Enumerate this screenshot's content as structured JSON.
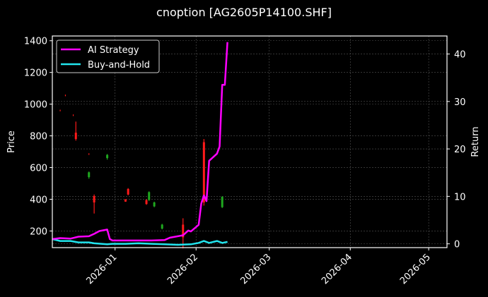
{
  "title": "cnoption [AG2605P14100.SHF]",
  "colors": {
    "background": "#000000",
    "axis": "#ffffff",
    "grid": "#555555",
    "ai_strategy": "#ff00ff",
    "buy_and_hold": "#22e5ee",
    "candle_up": "#1fa81f",
    "candle_down": "#ff1a1a"
  },
  "legend": {
    "items": [
      {
        "label": "AI Strategy",
        "color": "#ff00ff"
      },
      {
        "label": "Buy-and-Hold",
        "color": "#22e5ee"
      }
    ],
    "position": "upper left"
  },
  "chart_data": {
    "type": "line",
    "title": "cnoption [AG2605P14100.SHF]",
    "xlabel": "",
    "ylabel": "Price",
    "ylabel_right": "Return",
    "x_ticks": [
      "2026-01",
      "2026-02",
      "2026-03",
      "2026-04",
      "2026-05"
    ],
    "y_ticks_left": [
      200,
      400,
      600,
      800,
      1000,
      1200,
      1400
    ],
    "y_ticks_right": [
      0,
      10,
      20,
      30,
      40
    ],
    "ylim_left": [
      95,
      1430
    ],
    "ylim_right": [
      -0.8,
      43.8
    ],
    "xlim": [
      "2025-12-08",
      "2026-05-08"
    ],
    "grid": true,
    "legend_position": "upper left",
    "series": [
      {
        "name": "AI Strategy",
        "axis": "right",
        "color": "#ff00ff",
        "x": [
          "2025-12-08",
          "2025-12-11",
          "2025-12-15",
          "2025-12-18",
          "2025-12-22",
          "2025-12-24",
          "2025-12-26",
          "2025-12-29",
          "2025-12-30",
          "2025-12-31",
          "2026-01-05",
          "2026-01-10",
          "2026-01-15",
          "2026-01-20",
          "2026-01-22",
          "2026-01-25",
          "2026-01-27",
          "2026-01-29",
          "2026-01-30",
          "2026-02-02",
          "2026-02-03",
          "2026-02-04",
          "2026-02-05",
          "2026-02-06",
          "2026-02-09",
          "2026-02-10",
          "2026-02-11",
          "2026-02-12",
          "2026-02-13"
        ],
        "values": [
          1.0,
          1.2,
          1.1,
          1.5,
          1.6,
          2.1,
          2.7,
          3.0,
          1.0,
          0.7,
          0.7,
          0.7,
          0.7,
          0.8,
          1.3,
          1.6,
          1.8,
          2.8,
          2.6,
          4.0,
          8.5,
          10.2,
          9.0,
          17.5,
          19.0,
          20.5,
          33.5,
          33.5,
          42.5
        ]
      },
      {
        "name": "Buy-and-Hold",
        "axis": "right",
        "color": "#22e5ee",
        "x": [
          "2025-12-08",
          "2025-12-11",
          "2025-12-15",
          "2025-12-18",
          "2025-12-22",
          "2025-12-24",
          "2025-12-29",
          "2025-12-31",
          "2026-01-05",
          "2026-01-10",
          "2026-01-15",
          "2026-01-20",
          "2026-01-25",
          "2026-01-30",
          "2026-02-02",
          "2026-02-04",
          "2026-02-06",
          "2026-02-09",
          "2026-02-11",
          "2026-02-13"
        ],
        "values": [
          1.0,
          0.6,
          0.6,
          0.3,
          0.3,
          0.1,
          -0.1,
          0.0,
          0.0,
          0.1,
          0.0,
          -0.1,
          -0.2,
          -0.1,
          0.2,
          0.6,
          0.2,
          0.6,
          0.2,
          0.4
        ]
      },
      {
        "name": "Price (OHLC candles)",
        "axis": "left",
        "type": "candlestick",
        "candles": [
          {
            "x": "2025-12-11",
            "high": 965,
            "low": 955,
            "dir": "down"
          },
          {
            "x": "2025-12-13",
            "high": 1060,
            "low": 1050,
            "dir": "down"
          },
          {
            "x": "2025-12-16",
            "high": 935,
            "low": 925,
            "dir": "down"
          },
          {
            "x": "2025-12-17",
            "high": 890,
            "low": 770,
            "open": 820,
            "close": 780,
            "dir": "down"
          },
          {
            "x": "2025-12-22",
            "high": 690,
            "low": 680,
            "dir": "down"
          },
          {
            "x": "2025-12-22",
            "high": 575,
            "low": 530,
            "open": 540,
            "close": 570,
            "dir": "up"
          },
          {
            "x": "2025-12-24",
            "high": 430,
            "low": 310,
            "open": 420,
            "close": 380,
            "dir": "down"
          },
          {
            "x": "2025-12-29",
            "high": 685,
            "low": 650,
            "open": 660,
            "close": 680,
            "dir": "up"
          },
          {
            "x": "2026-01-05",
            "high": 400,
            "low": 385,
            "open": 400,
            "close": 385,
            "dir": "down"
          },
          {
            "x": "2026-01-06",
            "high": 470,
            "low": 425,
            "open": 465,
            "close": 430,
            "dir": "down"
          },
          {
            "x": "2026-01-13",
            "high": 400,
            "low": 365,
            "open": 395,
            "close": 370,
            "dir": "down"
          },
          {
            "x": "2026-01-14",
            "high": 450,
            "low": 390,
            "open": 395,
            "close": 445,
            "dir": "up"
          },
          {
            "x": "2026-01-16",
            "high": 385,
            "low": 350,
            "open": 355,
            "close": 380,
            "dir": "up"
          },
          {
            "x": "2026-01-19",
            "high": 245,
            "low": 210,
            "open": 215,
            "close": 240,
            "dir": "up"
          },
          {
            "x": "2026-01-27",
            "high": 280,
            "low": 90,
            "open": 240,
            "close": 160,
            "dir": "down"
          },
          {
            "x": "2026-02-04",
            "high": 780,
            "low": 360,
            "open": 760,
            "close": 380,
            "dir": "down"
          },
          {
            "x": "2026-02-11",
            "high": 420,
            "low": 345,
            "open": 350,
            "close": 415,
            "dir": "up"
          }
        ]
      }
    ]
  }
}
